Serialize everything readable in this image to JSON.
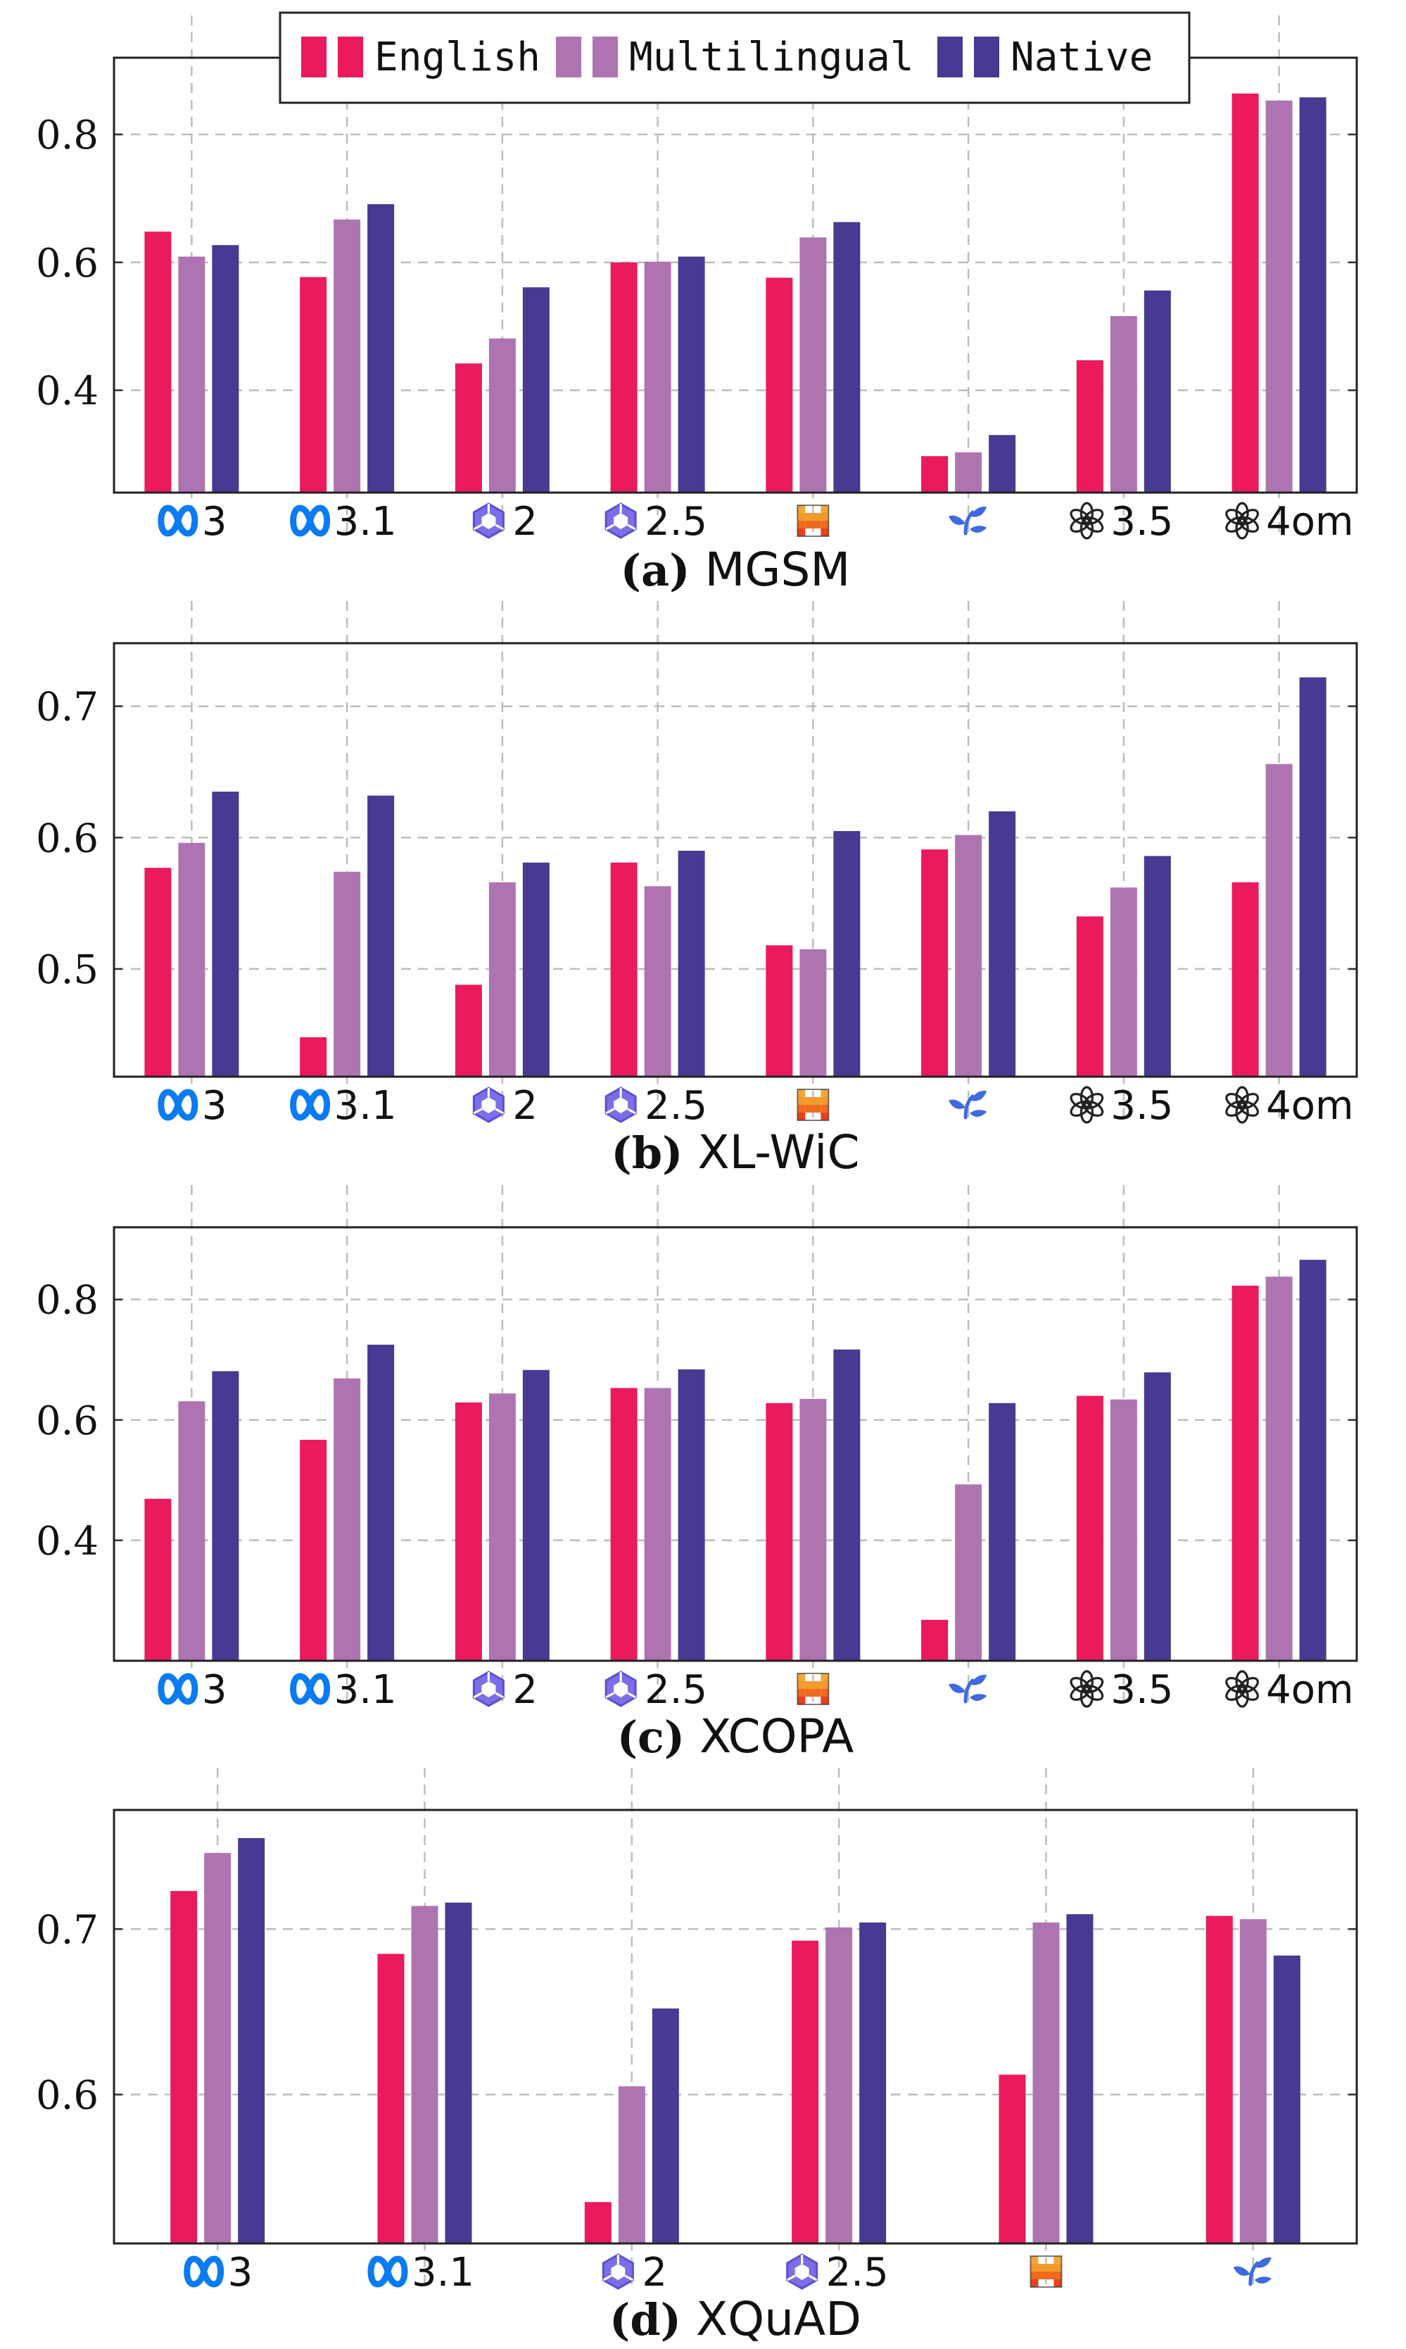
{
  "legend": {
    "entries": [
      {
        "label": "English",
        "color": "#ea1a5c"
      },
      {
        "label": "Multilingual",
        "color": "#ae74b2"
      },
      {
        "label": "Native",
        "color": "#473a92"
      }
    ]
  },
  "icons": {
    "meta": "meta-logo-icon",
    "qwen": "qwen-logo-icon",
    "mistral": "mistral-logo-icon",
    "sprout": "sprout-logo-icon",
    "openai": "openai-logo-icon"
  },
  "chart_data": [
    {
      "type": "bar",
      "caption_prefix": "(a)",
      "title": "MGSM",
      "ylim": [
        0.24,
        0.92
      ],
      "yticks": [
        0.4,
        0.6,
        0.8
      ],
      "ytick_labels": [
        "0.4",
        "0.6",
        "0.8"
      ],
      "grid": true,
      "legend_position": "top-center",
      "categories": [
        {
          "icon": "meta",
          "text": "3"
        },
        {
          "icon": "meta",
          "text": "3.1"
        },
        {
          "icon": "qwen",
          "text": "2"
        },
        {
          "icon": "qwen",
          "text": "2.5"
        },
        {
          "icon": "mistral",
          "text": ""
        },
        {
          "icon": "sprout",
          "text": ""
        },
        {
          "icon": "openai",
          "text": "3.5"
        },
        {
          "icon": "openai",
          "text": "4om"
        }
      ],
      "series": [
        {
          "name": "English",
          "values": [
            0.648,
            0.577,
            0.442,
            0.6,
            0.576,
            0.297,
            0.447,
            0.864
          ]
        },
        {
          "name": "Multilingual",
          "values": [
            0.609,
            0.667,
            0.481,
            0.601,
            0.639,
            0.303,
            0.516,
            0.853
          ]
        },
        {
          "name": "Native",
          "values": [
            0.627,
            0.691,
            0.561,
            0.609,
            0.663,
            0.33,
            0.556,
            0.858
          ]
        }
      ]
    },
    {
      "type": "bar",
      "caption_prefix": "(b)",
      "title": "XL-WiC",
      "ylim": [
        0.418,
        0.748
      ],
      "yticks": [
        0.5,
        0.6,
        0.7
      ],
      "ytick_labels": [
        "0.5",
        "0.6",
        "0.7"
      ],
      "grid": true,
      "categories": [
        {
          "icon": "meta",
          "text": "3"
        },
        {
          "icon": "meta",
          "text": "3.1"
        },
        {
          "icon": "qwen",
          "text": "2"
        },
        {
          "icon": "qwen",
          "text": "2.5"
        },
        {
          "icon": "mistral",
          "text": ""
        },
        {
          "icon": "sprout",
          "text": ""
        },
        {
          "icon": "openai",
          "text": "3.5"
        },
        {
          "icon": "openai",
          "text": "4om"
        }
      ],
      "series": [
        {
          "name": "English",
          "values": [
            0.577,
            0.448,
            0.488,
            0.581,
            0.518,
            0.591,
            0.54,
            0.566
          ]
        },
        {
          "name": "Multilingual",
          "values": [
            0.596,
            0.574,
            0.566,
            0.563,
            0.515,
            0.602,
            0.562,
            0.656
          ]
        },
        {
          "name": "Native",
          "values": [
            0.635,
            0.632,
            0.581,
            0.59,
            0.605,
            0.62,
            0.586,
            0.722
          ]
        }
      ]
    },
    {
      "type": "bar",
      "caption_prefix": "(c)",
      "title": "XCOPA",
      "ylim": [
        0.2,
        0.92
      ],
      "yticks": [
        0.4,
        0.6,
        0.8
      ],
      "ytick_labels": [
        "0.4",
        "0.6",
        "0.8"
      ],
      "grid": true,
      "categories": [
        {
          "icon": "meta",
          "text": "3"
        },
        {
          "icon": "meta",
          "text": "3.1"
        },
        {
          "icon": "qwen",
          "text": "2"
        },
        {
          "icon": "qwen",
          "text": "2.5"
        },
        {
          "icon": "mistral",
          "text": ""
        },
        {
          "icon": "sprout",
          "text": ""
        },
        {
          "icon": "openai",
          "text": "3.5"
        },
        {
          "icon": "openai",
          "text": "4om"
        }
      ],
      "series": [
        {
          "name": "English",
          "values": [
            0.469,
            0.567,
            0.629,
            0.653,
            0.628,
            0.268,
            0.64,
            0.823
          ]
        },
        {
          "name": "Multilingual",
          "values": [
            0.631,
            0.669,
            0.644,
            0.653,
            0.635,
            0.493,
            0.634,
            0.838
          ]
        },
        {
          "name": "Native",
          "values": [
            0.681,
            0.725,
            0.683,
            0.684,
            0.717,
            0.628,
            0.679,
            0.866
          ]
        }
      ]
    },
    {
      "type": "bar",
      "caption_prefix": "(d)",
      "title": "XQuAD",
      "ylim": [
        0.51,
        0.772
      ],
      "yticks": [
        0.6,
        0.7
      ],
      "ytick_labels": [
        "0.6",
        "0.7"
      ],
      "grid": true,
      "categories": [
        {
          "icon": "meta",
          "text": "3"
        },
        {
          "icon": "meta",
          "text": "3.1"
        },
        {
          "icon": "qwen",
          "text": "2"
        },
        {
          "icon": "qwen",
          "text": "2.5"
        },
        {
          "icon": "mistral",
          "text": ""
        },
        {
          "icon": "sprout",
          "text": ""
        }
      ],
      "series": [
        {
          "name": "English",
          "values": [
            0.723,
            0.685,
            0.535,
            0.693,
            0.612,
            0.708
          ]
        },
        {
          "name": "Multilingual",
          "values": [
            0.746,
            0.714,
            0.605,
            0.701,
            0.704,
            0.706
          ]
        },
        {
          "name": "Native",
          "values": [
            0.755,
            0.716,
            0.652,
            0.704,
            0.709,
            0.684
          ]
        }
      ]
    }
  ]
}
